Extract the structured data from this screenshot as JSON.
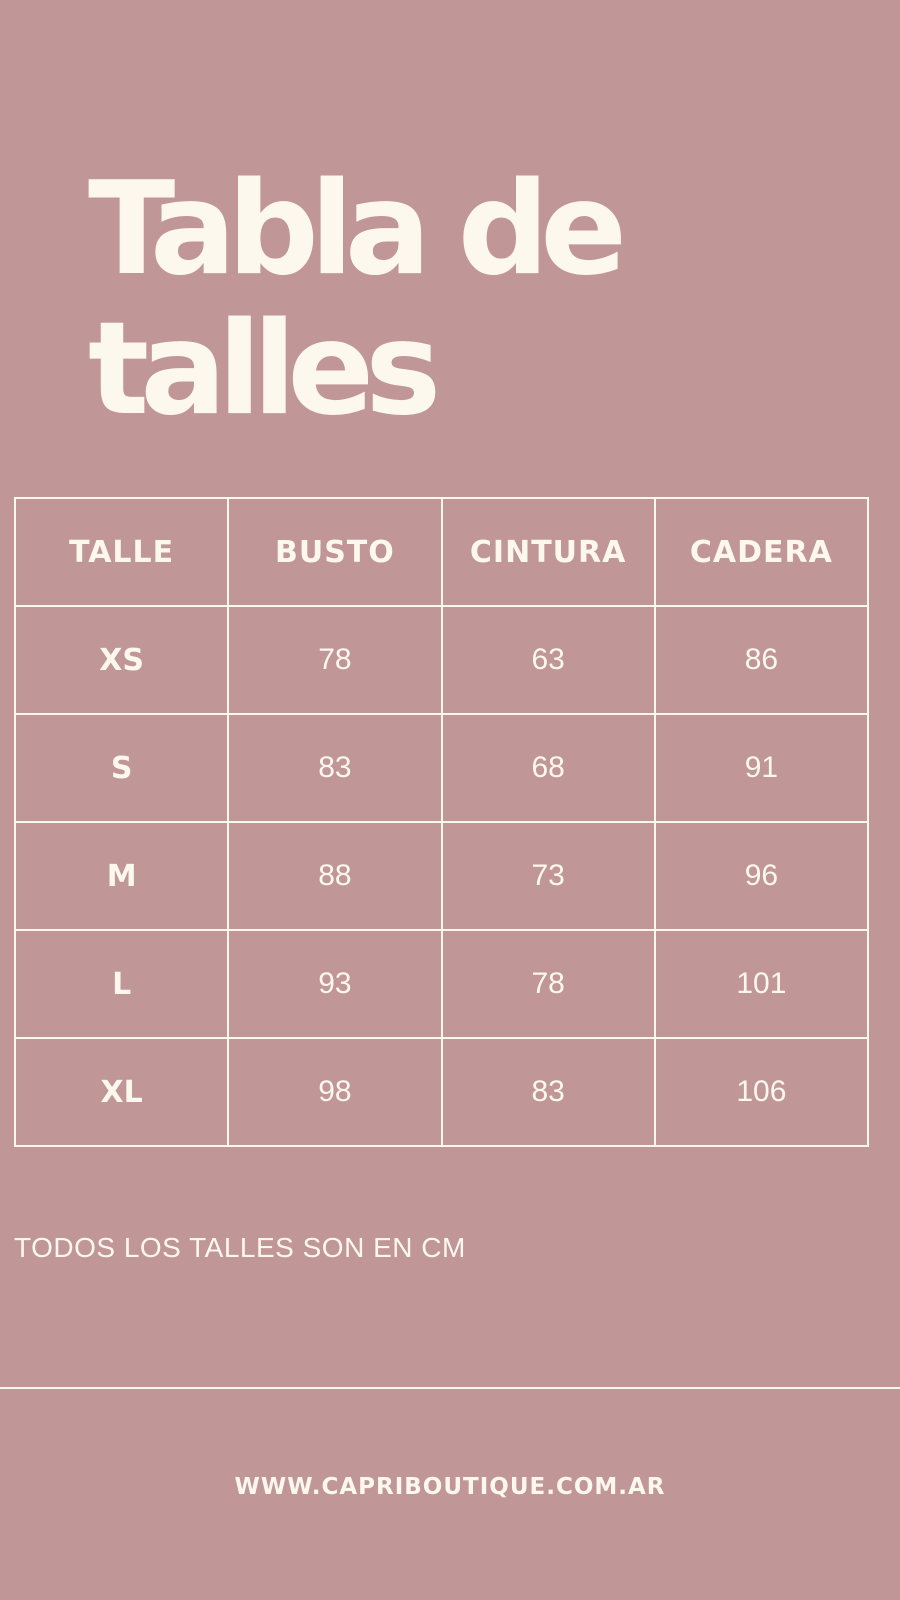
{
  "title": {
    "line1": "Tabla de",
    "line2": "talles"
  },
  "table": {
    "headers": [
      "TALLE",
      "BUSTO",
      "CINTURA",
      "CADERA"
    ],
    "rows": [
      [
        "XS",
        "78",
        "63",
        "86"
      ],
      [
        "S",
        "83",
        "68",
        "91"
      ],
      [
        "M",
        "88",
        "73",
        "96"
      ],
      [
        "L",
        "93",
        "78",
        "101"
      ],
      [
        "XL",
        "98",
        "83",
        "106"
      ]
    ]
  },
  "note": "TODOS LOS TALLES SON EN CM",
  "footer": {
    "url": "WWW.CAPRIBOUTIQUE.COM.AR"
  },
  "colors": {
    "background": "#c09697",
    "text": "#fdf8ee"
  }
}
